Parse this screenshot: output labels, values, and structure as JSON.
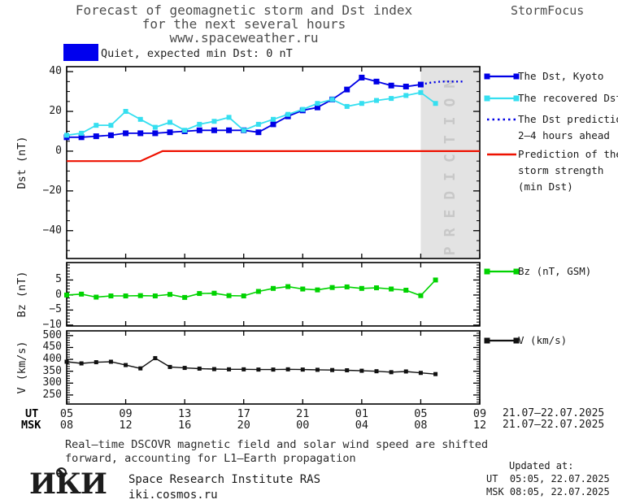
{
  "header": {
    "title_line1": "Forecast of geomagnetic storm and Dst index",
    "title_line2": "for the next several hours",
    "title_line3": "www.spaceweather.ru",
    "brand": "StormFocus"
  },
  "status": {
    "label": "Quiet, expected min Dst: 0 nT",
    "swatch_color": "#0000ee"
  },
  "chart_data": [
    {
      "type": "line",
      "ylabel": "Dst (nT)",
      "ylim": [
        -54,
        42.5
      ],
      "ytick_values": [
        40,
        20,
        0,
        -20,
        -40
      ],
      "ytick_labels": [
        "40",
        "20",
        "0",
        "−20",
        "−40"
      ],
      "minor_step": 5,
      "x_hours_span": [
        0,
        28
      ],
      "x_start_time_ut": "05:00 21.07.2025",
      "band": {
        "label": "PREDICTION",
        "from_hour": 24,
        "to_hour": 28,
        "fill": "#e3e3e3",
        "text_color": "#c8c8c8"
      },
      "series": [
        {
          "key": "dst_kyoto",
          "color": "#0000e6",
          "style": "solid",
          "legend_lines": [
            "The Dst, Kyoto"
          ],
          "x_start": 0,
          "x_step": 1,
          "values": [
            7,
            7,
            7.5,
            8,
            9,
            9,
            9,
            9.5,
            10,
            10.5,
            10.5,
            10.5,
            10.5,
            9.5,
            13.5,
            17.5,
            20.5,
            22,
            26,
            31,
            37,
            35,
            33,
            32.5,
            33.5
          ]
        },
        {
          "key": "dst_recovered",
          "color": "#35dff0",
          "style": "solid",
          "legend_lines": [
            "The recovered Dst"
          ],
          "x_start": 0,
          "x_step": 1,
          "values": [
            8,
            9,
            13,
            13,
            20,
            16,
            12,
            14.5,
            10.5,
            13.5,
            15,
            17,
            10.5,
            13.5,
            16,
            18.5,
            21,
            24,
            26,
            22.5,
            24,
            25.5,
            26.5,
            28,
            29.5,
            24
          ]
        },
        {
          "key": "dst_prediction",
          "color": "#0000e6",
          "style": "dotted",
          "legend_lines": [
            "The Dst prediction",
            "2–4 hours ahead"
          ],
          "x": [
            24,
            24.7,
            25.4,
            26.2,
            27
          ],
          "values": [
            33.5,
            34.5,
            35,
            35,
            35
          ]
        },
        {
          "key": "storm_strength",
          "color": "#ee1100",
          "style": "solid",
          "legend_lines": [
            "Prediction of the",
            "storm strength",
            "(min Dst)"
          ],
          "x": [
            0,
            5,
            6.5,
            28
          ],
          "values": [
            -5,
            -5,
            0,
            0
          ]
        }
      ]
    },
    {
      "type": "line",
      "ylabel": "Bz (nT)",
      "ylim": [
        -10.3,
        10.8
      ],
      "ytick_values": [
        5,
        0,
        -5,
        -10
      ],
      "ytick_labels": [
        "5",
        "0",
        "−5",
        "−10"
      ],
      "minor_step": 1,
      "x_hours_span": [
        0,
        28
      ],
      "series": [
        {
          "key": "bz",
          "color": "#00d300",
          "style": "solid",
          "legend_lines": [
            "Bz (nT, GSM)"
          ],
          "x_start": 0,
          "x_step": 1,
          "values": [
            0,
            0.3,
            -0.7,
            -0.3,
            -0.3,
            -0.2,
            -0.3,
            0.2,
            -0.8,
            0.5,
            0.6,
            -0.2,
            -0.3,
            1.2,
            2.2,
            2.8,
            2.0,
            1.7,
            2.5,
            2.7,
            2.2,
            2.4,
            2.0,
            1.6,
            -0.2,
            5.0
          ]
        }
      ]
    },
    {
      "type": "line",
      "ylabel": "V (km/s)",
      "ylim": [
        212,
        520
      ],
      "ytick_values": [
        500,
        450,
        400,
        350,
        300,
        250
      ],
      "ytick_labels": [
        "500",
        "450",
        "400",
        "350",
        "300",
        "250"
      ],
      "minor_step": 10,
      "x_hours_span": [
        0,
        28
      ],
      "series": [
        {
          "key": "v",
          "color": "#111111",
          "style": "solid",
          "legend_lines": [
            "V (km/s)"
          ],
          "x_start": 0,
          "x_step": 1,
          "values": [
            390,
            383,
            388,
            390,
            376,
            362,
            405,
            368,
            364,
            361,
            359,
            358,
            358,
            357,
            357,
            358,
            357,
            356,
            355,
            354,
            352,
            350,
            346,
            349,
            343,
            338
          ]
        }
      ]
    }
  ],
  "xaxis": {
    "ut_label": "UT",
    "msk_label": "MSK",
    "ut_ticks": [
      "05",
      "09",
      "13",
      "17",
      "21",
      "01",
      "05",
      "09"
    ],
    "msk_ticks": [
      "08",
      "12",
      "16",
      "20",
      "00",
      "04",
      "08",
      "12"
    ],
    "ut_range": "21.07–22.07.2025",
    "msk_range": "21.07–22.07.2025"
  },
  "footer": {
    "note_line1": "Real–time DSCOVR magnetic field and solar wind speed are shifted",
    "note_line2": "forward, accounting for L1–Earth propagation",
    "logo_text": "ИКИ",
    "institute": "Space Research Institute RAS",
    "site": "iki.cosmos.ru",
    "updated_label": "Updated at:",
    "updated_ut": "UT  05:05, 22.07.2025",
    "updated_msk": "MSK 08:05, 22.07.2025"
  }
}
